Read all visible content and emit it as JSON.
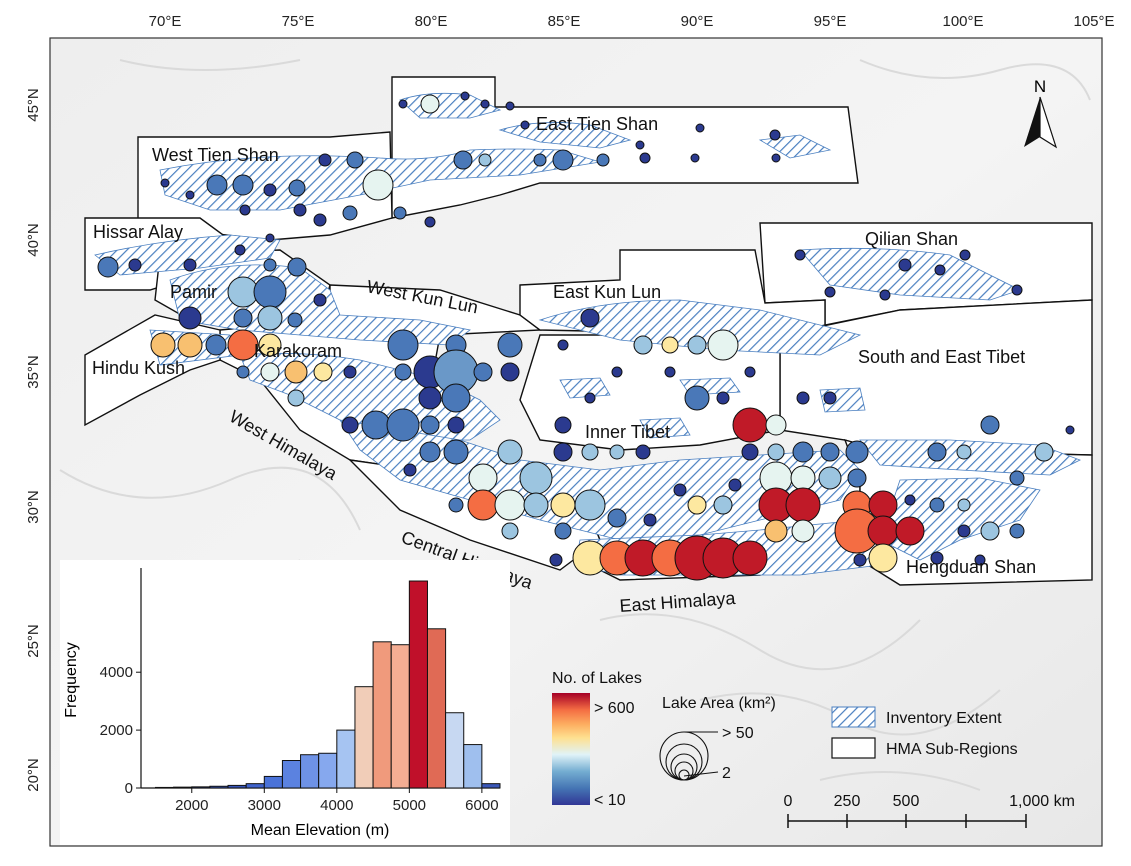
{
  "map": {
    "lon_ticks": [
      "70°E",
      "75°E",
      "80°E",
      "85°E",
      "90°E",
      "95°E",
      "100°E",
      "105°E"
    ],
    "lat_ticks": [
      "45°N",
      "40°N",
      "35°N",
      "30°N",
      "25°N",
      "20°N"
    ],
    "regions": [
      "East Tien Shan",
      "West Tien Shan",
      "Hissar Alay",
      "Qilian Shan",
      "Pamir",
      "West Kun Lun",
      "East Kun Lun",
      "Karakoram",
      "Hindu Kush",
      "South and East Tibet",
      "Inner Tibet",
      "West Himalaya",
      "Central Himalaya",
      "East Himalaya",
      "Hengduan Shan"
    ],
    "north_label": "N",
    "colors": {
      "low": "#313695",
      "mid": "#e0f3f8",
      "high": "#a50026",
      "hatch": "#4a7fc0"
    }
  },
  "legend": {
    "color_title": "No. of Lakes",
    "color_high": "> 600",
    "color_low": "< 10",
    "size_title": "Lake Area (km²)",
    "size_high": "> 50",
    "size_low": "2",
    "inventory": "Inventory Extent",
    "subregions": "HMA Sub-Regions"
  },
  "scalebar": {
    "labels": [
      "0",
      "250",
      "500",
      "1,000 km"
    ]
  },
  "chart_data": {
    "type": "bar",
    "xlabel": "Mean Elevation (m)",
    "ylabel": "Frequency",
    "xlim": [
      1300,
      6250
    ],
    "ylim": [
      0,
      7600
    ],
    "x_ticks": [
      2000,
      3000,
      4000,
      5000,
      6000
    ],
    "y_ticks": [
      0,
      2000,
      4000
    ],
    "bin_width": 250,
    "bins": [
      {
        "x0": 1500,
        "value": 20,
        "color": "#2c3fa0"
      },
      {
        "x0": 1750,
        "value": 30,
        "color": "#2c3fa0"
      },
      {
        "x0": 2000,
        "value": 40,
        "color": "#2c3fa0"
      },
      {
        "x0": 2250,
        "value": 60,
        "color": "#3553b8"
      },
      {
        "x0": 2500,
        "value": 90,
        "color": "#3553b8"
      },
      {
        "x0": 2750,
        "value": 150,
        "color": "#4063cc"
      },
      {
        "x0": 3000,
        "value": 400,
        "color": "#4a72d8"
      },
      {
        "x0": 3250,
        "value": 950,
        "color": "#5b82e0"
      },
      {
        "x0": 3500,
        "value": 1150,
        "color": "#6e92e6"
      },
      {
        "x0": 3750,
        "value": 1200,
        "color": "#86a8ee"
      },
      {
        "x0": 4000,
        "value": 2000,
        "color": "#a6c4f2"
      },
      {
        "x0": 4250,
        "value": 3500,
        "color": "#f1cdb8"
      },
      {
        "x0": 4500,
        "value": 5050,
        "color": "#f09a7c"
      },
      {
        "x0": 4750,
        "value": 4950,
        "color": "#f4ad93"
      },
      {
        "x0": 5000,
        "value": 7150,
        "color": "#c0102a"
      },
      {
        "x0": 5250,
        "value": 5500,
        "color": "#e06a55"
      },
      {
        "x0": 5500,
        "value": 2600,
        "color": "#c7d8f2"
      },
      {
        "x0": 5750,
        "value": 1500,
        "color": "#9fbfee"
      },
      {
        "x0": 6000,
        "value": 150,
        "color": "#3a57b8"
      }
    ]
  }
}
